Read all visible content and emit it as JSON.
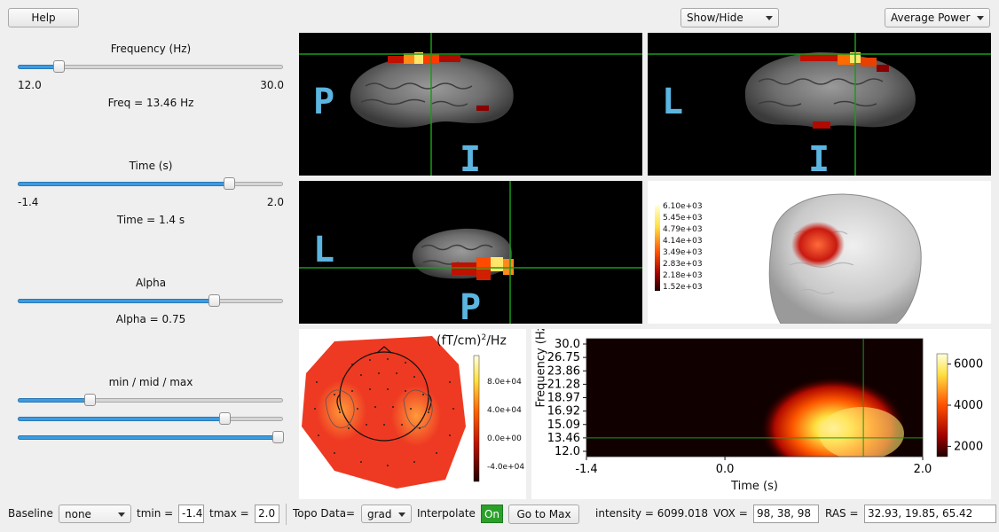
{
  "toolbar": {
    "help_label": "Help",
    "show_hide": "Show/Hide",
    "power_mode": "Average Power"
  },
  "controls": {
    "frequency": {
      "title": "Frequency (Hz)",
      "min": "12.0",
      "max": "30.0",
      "readout": "Freq = 13.46 Hz",
      "level": 0.14
    },
    "time": {
      "title": "Time (s)",
      "min": "-1.4",
      "max": "2.0",
      "readout": "Time = 1.4 s",
      "level": 0.81
    },
    "alpha": {
      "title": "Alpha",
      "readout": "Alpha = 0.75",
      "level": 0.75
    },
    "clim": {
      "title": "min / mid / max",
      "min_level": 0.26,
      "mid_level": 0.79,
      "max_level": 1.0
    }
  },
  "views": {
    "sagittal": {
      "left_letter": "P",
      "bottom_letter": "I"
    },
    "coronal": {
      "left_letter": "L",
      "bottom_letter": "I"
    },
    "axial": {
      "left_letter": "L",
      "bottom_letter": "P"
    }
  },
  "render3d": {
    "colorbar_labels": [
      "6.10e+03",
      "5.45e+03",
      "4.79e+03",
      "4.14e+03",
      "3.49e+03",
      "2.83e+03",
      "2.18e+03",
      "1.52e+03"
    ]
  },
  "topomap": {
    "unit_base": "(fT/cm)",
    "unit_exp": "2",
    "unit_tail": "/Hz",
    "ticks": [
      "8.0e+04",
      "4.0e+04",
      "0.0e+00",
      "-4.0e+04"
    ]
  },
  "colors": {
    "accent": "#3d9be0",
    "crosshair": "#1a9a1a",
    "letter": "#5bb5e0",
    "on_button": "#2aa02a"
  },
  "chart_data": {
    "type": "heatmap",
    "title": "",
    "xlabel": "Time (s)",
    "ylabel": "Frequency (Hz)",
    "xlim": [
      -1.4,
      2.0
    ],
    "x_ticks": [
      "-1.4",
      "0.0",
      "2.0"
    ],
    "y_ticks": [
      "30.0",
      "26.75",
      "23.86",
      "21.28",
      "18.97",
      "16.92",
      "15.09",
      "13.46",
      "12.0"
    ],
    "colorbar_ticks": [
      "6000",
      "4000",
      "2000"
    ],
    "crosshair": {
      "time": 1.4,
      "frequency": 13.46
    }
  },
  "bottom": {
    "baseline_label": "Baseline",
    "baseline_value": "none",
    "tmin_label": "tmin =",
    "tmin_value": "-1.4",
    "tmax_label": "tmax =",
    "tmax_value": "2.0",
    "topo_label": "Topo Data=",
    "topo_value": "grad",
    "interp_label": "Interpolate",
    "interp_value": "On",
    "go_max_label": "Go to Max",
    "intensity": "intensity = 6099.018",
    "vox_label": "VOX =",
    "vox_value": "98,  38,  98",
    "ras_label": "RAS =",
    "ras_value": "32.93, 19.85, 65.42"
  }
}
